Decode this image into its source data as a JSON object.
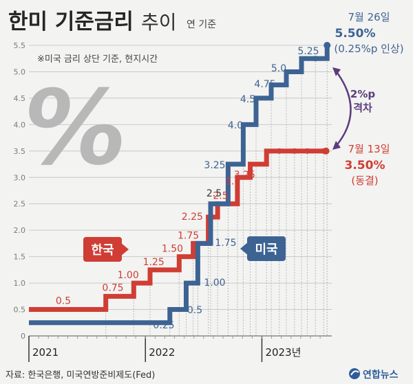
{
  "header": {
    "title_bold": "한미 기준금리",
    "title_light": "추이",
    "subtitle": "연 기준"
  },
  "note": "※미국 금리 상단 기준, 현지시간",
  "percent_glyph": "%",
  "source": "자료: 한국은행, 미국연방준비제도(Fed)",
  "logo_text": "연합뉴스",
  "colors": {
    "us": "#3d6393",
    "kr": "#cf3d34",
    "gap": "#5b3d7d",
    "grid": "#c8c8c8",
    "axis_text": "#7a7a7a"
  },
  "chart_data": {
    "type": "line",
    "step": true,
    "xlim": [
      2021.0,
      2023.6
    ],
    "ylim": [
      0,
      5.5
    ],
    "y_ticks": [
      "0",
      "0.5",
      "1.0",
      "1.5",
      "2.0",
      "2.5",
      "3.0",
      "3.5",
      "4.0",
      "4.5",
      "5.0",
      "5.5"
    ],
    "x_ticks": [
      {
        "label": "2021",
        "x": 2021.0
      },
      {
        "label": "2022",
        "x": 2022.0
      },
      {
        "label": "2023년",
        "x": 2023.0
      }
    ],
    "grid": true,
    "series": [
      {
        "name": "한국",
        "badge": "한국",
        "points": [
          {
            "x": 2021.0,
            "y": 0.5,
            "label": "0.5"
          },
          {
            "x": 2021.66,
            "y": 0.75,
            "label": "0.75"
          },
          {
            "x": 2021.9,
            "y": 1.0,
            "label": "1.00"
          },
          {
            "x": 2022.04,
            "y": 1.25,
            "label": "1.25"
          },
          {
            "x": 2022.29,
            "y": 1.5,
            "label": "1.50"
          },
          {
            "x": 2022.41,
            "y": 1.75,
            "label": "1.75"
          },
          {
            "x": 2022.54,
            "y": 2.25,
            "label": "2.25"
          },
          {
            "x": 2022.62,
            "y": 2.5,
            "label": "2.5"
          },
          {
            "x": 2022.79,
            "y": 3.0,
            "label": "3.0"
          },
          {
            "x": 2022.9,
            "y": 3.25,
            "label": "3.25"
          },
          {
            "x": 2023.04,
            "y": 3.5,
            "label": ""
          }
        ],
        "hold_markers": [
          2023.15,
          2023.28,
          2023.39,
          2023.53
        ],
        "end": {
          "x": 2023.55,
          "date": "7월 13일",
          "value": "3.50%",
          "note": "(동결)"
        }
      },
      {
        "name": "미국",
        "badge": "미국",
        "points": [
          {
            "x": 2021.0,
            "y": 0.25,
            "label": "0.25"
          },
          {
            "x": 2022.21,
            "y": 0.5,
            "label": "0.5"
          },
          {
            "x": 2022.35,
            "y": 1.0,
            "label": "1.00"
          },
          {
            "x": 2022.45,
            "y": 1.75,
            "label": "1.75"
          },
          {
            "x": 2022.56,
            "y": 2.5,
            "label": ""
          },
          {
            "x": 2022.71,
            "y": 3.25,
            "label": "3.25"
          },
          {
            "x": 2022.84,
            "y": 4.0,
            "label": "4.0"
          },
          {
            "x": 2022.95,
            "y": 4.5,
            "label": "4.5"
          },
          {
            "x": 2023.08,
            "y": 4.75,
            "label": "4.75"
          },
          {
            "x": 2023.21,
            "y": 5.0,
            "label": "5.0"
          },
          {
            "x": 2023.34,
            "y": 5.25,
            "label": "5.25"
          },
          {
            "x": 2023.56,
            "y": 5.5,
            "label": ""
          }
        ],
        "hold_markers": [
          2023.46
        ],
        "end": {
          "x": 2023.56,
          "date": "7월 26일",
          "value": "5.50%",
          "note": "(0.25%p 인상)"
        }
      }
    ],
    "gap_annotation": {
      "value": "2%p",
      "label": "격차"
    }
  }
}
